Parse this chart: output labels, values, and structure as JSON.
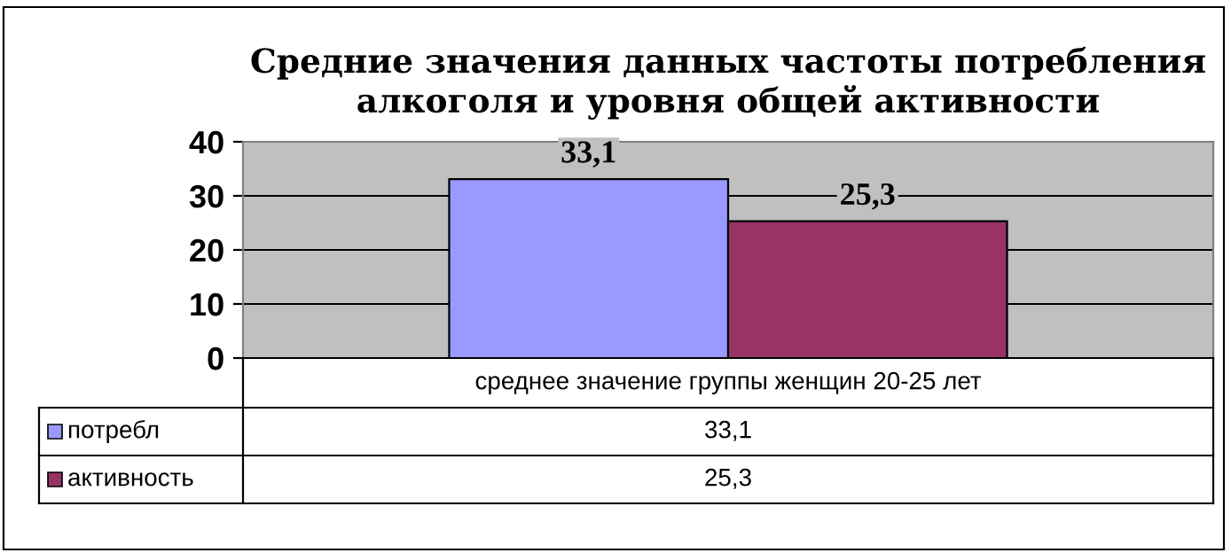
{
  "chart_data": {
    "type": "bar",
    "title": "Средние значения данных частоты потребления\nалкоголя и уровня общей активности",
    "categories": [
      "среднее значение группы женщин 20-25 лет"
    ],
    "series": [
      {
        "name": "потребл",
        "color": "#9999ff",
        "values": [
          33.1
        ],
        "value_labels": [
          "33,1"
        ]
      },
      {
        "name": "активность",
        "color": "#993366",
        "values": [
          25.3
        ],
        "value_labels": [
          "25,3"
        ]
      }
    ],
    "ylim": [
      0,
      40
    ],
    "yticks": [
      0,
      10,
      20,
      30,
      40
    ],
    "grid": "y",
    "legend": "bottom left"
  }
}
